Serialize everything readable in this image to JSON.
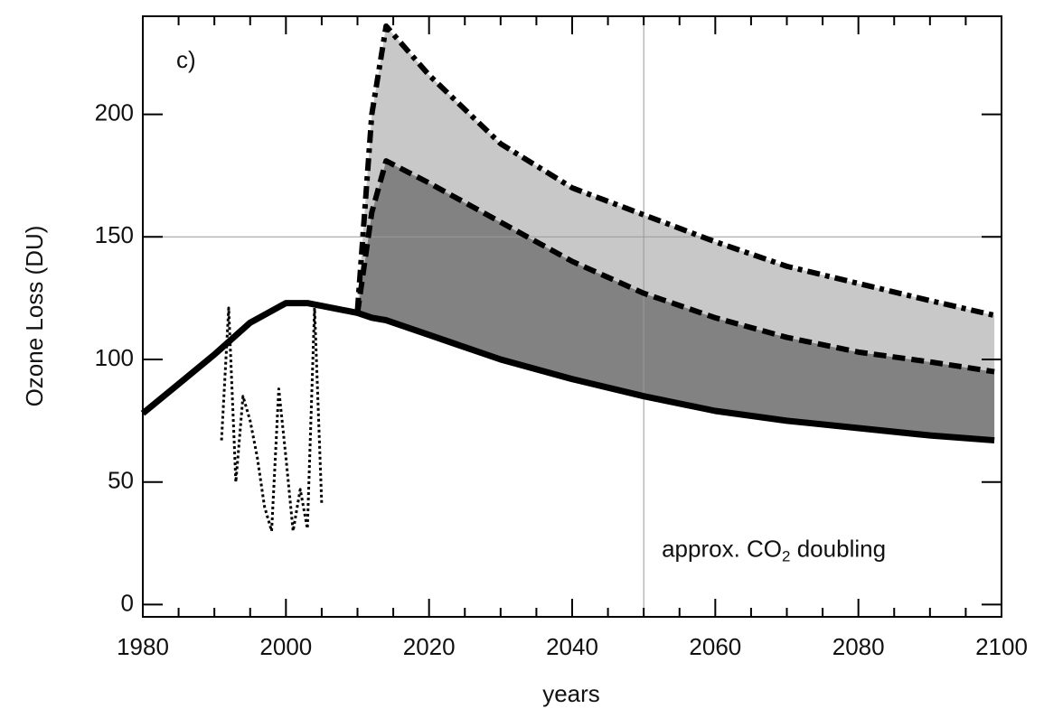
{
  "chart_data": {
    "type": "line",
    "panel_label": "c)",
    "xlabel": "years",
    "ylabel": "Ozone Loss (DU)",
    "annotation": {
      "text": "approx. CO",
      "subscript": "2",
      "suffix": " doubling",
      "x": 2051,
      "y": 22
    },
    "xlim": [
      1980,
      2100
    ],
    "ylim": [
      -5,
      240
    ],
    "xticks": [
      1980,
      2000,
      2020,
      2040,
      2060,
      2080,
      2100
    ],
    "xminorticks": [
      1985,
      1990,
      1995,
      2005,
      2010,
      2015,
      2025,
      2030,
      2035,
      2045,
      2050,
      2055,
      2065,
      2070,
      2075,
      2085,
      2090,
      2095
    ],
    "yticks": [
      0,
      50,
      100,
      150,
      200
    ],
    "xgrid": [
      2050
    ],
    "ygrid": [
      150
    ],
    "series": [
      {
        "x": [
          1980,
          1985,
          1990,
          1995,
          2000,
          2003,
          2010,
          2012,
          2014,
          2020,
          2030,
          2040,
          2050,
          2060,
          2070,
          2080,
          2090,
          2099
        ],
        "values": [
          78,
          90,
          102,
          115,
          123,
          123,
          119,
          117,
          116,
          110,
          100,
          92,
          85,
          79,
          75,
          72,
          69,
          67
        ],
        "color": "#000000",
        "dash": "solid",
        "width": 7
      },
      {
        "x": [
          2010,
          2012,
          2014,
          2020,
          2030,
          2040,
          2050,
          2060,
          2070,
          2080,
          2090,
          2099
        ],
        "values": [
          119,
          160,
          181,
          172,
          156,
          140,
          127,
          117,
          109,
          103,
          99,
          95
        ],
        "color": "#000000",
        "dash": "dashed",
        "width": 6,
        "fill": "#828282",
        "fill_to": 0
      },
      {
        "x": [
          2010,
          2012,
          2014,
          2020,
          2030,
          2040,
          2050,
          2060,
          2070,
          2080,
          2090,
          2099
        ],
        "values": [
          120,
          200,
          236,
          216,
          188,
          170,
          159,
          148,
          138,
          131,
          124,
          118
        ],
        "color": "#000000",
        "dash": "dashdot",
        "width": 6,
        "fill": "#c8c8c8",
        "fill_to": 1
      },
      {
        "x": [
          1991,
          1992,
          1993,
          1994,
          1995,
          1996,
          1997,
          1998,
          1999,
          2000,
          2001,
          2002,
          2003,
          2004,
          2005
        ],
        "values": [
          67,
          121,
          50,
          85,
          75,
          60,
          40,
          30,
          88,
          60,
          30,
          47,
          31,
          121,
          41
        ],
        "color": "#000000",
        "dash": "dotted",
        "width": 3
      }
    ]
  }
}
